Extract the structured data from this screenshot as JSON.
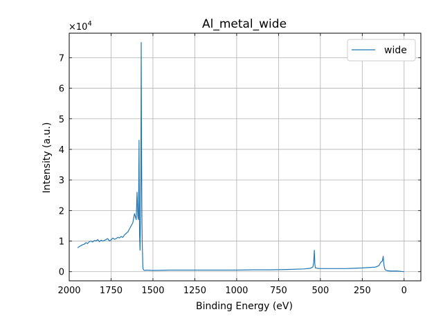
{
  "chart_data": {
    "type": "line",
    "title": "Al_metal_wide",
    "xlabel": "Binding Energy (eV)",
    "ylabel": "Intensity (a.u.)",
    "y_scale_label": "×10",
    "y_scale_exponent": "4",
    "xlim": [
      2000,
      -100
    ],
    "x_inverted": true,
    "ylim": [
      -0.3,
      7.8
    ],
    "y_multiplier": 10000,
    "grid": true,
    "legend_position": "top-right",
    "x_ticks": [
      2000,
      1750,
      1500,
      1250,
      1000,
      750,
      500,
      250,
      0
    ],
    "x_tick_labels": [
      "2000",
      "1750",
      "1500",
      "1250",
      "1000",
      "750",
      "500",
      "250",
      "0"
    ],
    "y_ticks": [
      0,
      1,
      2,
      3,
      4,
      5,
      6,
      7
    ],
    "y_tick_labels": [
      "0",
      "1",
      "2",
      "3",
      "4",
      "5",
      "6",
      "7"
    ],
    "series": [
      {
        "name": "wide",
        "color": "#1f77b4",
        "x": [
          1950,
          1940,
          1930,
          1920,
          1910,
          1900,
          1890,
          1880,
          1870,
          1860,
          1850,
          1840,
          1830,
          1820,
          1810,
          1800,
          1790,
          1780,
          1770,
          1760,
          1750,
          1740,
          1730,
          1720,
          1710,
          1700,
          1690,
          1680,
          1670,
          1660,
          1650,
          1640,
          1630,
          1620,
          1610,
          1600,
          1595,
          1590,
          1586,
          1583,
          1580,
          1577,
          1575,
          1572,
          1570,
          1568,
          1566,
          1564,
          1562,
          1560,
          1558,
          1555,
          1550,
          1540,
          1500,
          1400,
          1300,
          1200,
          1100,
          1000,
          900,
          800,
          700,
          600,
          560,
          545,
          540,
          536,
          533,
          530,
          525,
          520,
          500,
          450,
          400,
          350,
          300,
          250,
          200,
          170,
          150,
          140,
          130,
          125,
          122,
          120,
          118,
          115,
          110,
          100,
          80,
          60,
          40,
          20,
          0
        ],
        "y": [
          0.78,
          0.82,
          0.85,
          0.88,
          0.9,
          0.95,
          0.92,
          0.98,
          1.0,
          0.97,
          1.02,
          1.0,
          1.05,
          0.98,
          1.03,
          1.0,
          1.02,
          1.05,
          1.08,
          1.0,
          1.04,
          1.1,
          1.06,
          1.08,
          1.12,
          1.1,
          1.15,
          1.12,
          1.2,
          1.25,
          1.3,
          1.4,
          1.5,
          1.6,
          1.9,
          1.7,
          2.6,
          1.8,
          1.7,
          4.3,
          1.2,
          0.7,
          1.5,
          3.0,
          7.5,
          4.0,
          1.8,
          0.9,
          0.5,
          0.15,
          0.08,
          0.05,
          0.04,
          0.05,
          0.04,
          0.05,
          0.05,
          0.05,
          0.05,
          0.05,
          0.06,
          0.06,
          0.07,
          0.09,
          0.11,
          0.15,
          0.3,
          0.7,
          0.25,
          0.12,
          0.12,
          0.11,
          0.1,
          0.1,
          0.1,
          0.1,
          0.11,
          0.12,
          0.14,
          0.15,
          0.2,
          0.3,
          0.35,
          0.5,
          0.3,
          0.2,
          0.15,
          0.08,
          0.05,
          0.03,
          0.02,
          0.02,
          0.02,
          0.01,
          0.0
        ]
      }
    ]
  }
}
